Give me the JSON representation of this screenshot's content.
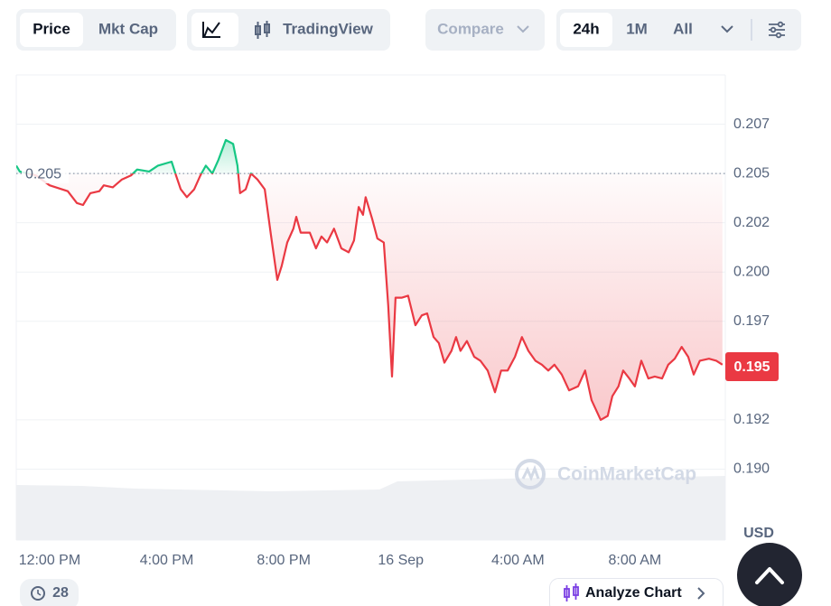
{
  "toolbar": {
    "price": "Price",
    "mkt_cap": "Mkt Cap",
    "trading_view": "TradingView",
    "compare": "Compare",
    "ranges": [
      "24h",
      "1M",
      "All"
    ]
  },
  "watermark": "CoinMarketCap",
  "footer": {
    "history_count": 28,
    "analyze": "Analyze Chart"
  },
  "chart_data": {
    "type": "line",
    "currency": "USD",
    "colors": {
      "up": "#16c784",
      "down": "#ea3943"
    },
    "reference": 0.205,
    "current_price": 0.1952,
    "current_price_label": "0.195",
    "x": [
      -1.14,
      -1.02,
      -0.46,
      0,
      0.62,
      0.93,
      1.14,
      1.39,
      1.7,
      1.85,
      2.16,
      2.47,
      2.78,
      2.99,
      3.4,
      3.7,
      4.17,
      4.32,
      4.48,
      4.69,
      4.94,
      5.15,
      5.34,
      5.56,
      5.77,
      6.02,
      6.27,
      6.42,
      6.51,
      6.7,
      6.88,
      7.1,
      7.35,
      7.56,
      7.78,
      7.93,
      8.12,
      8.33,
      8.43,
      8.58,
      8.89,
      9.1,
      9.29,
      9.48,
      9.72,
      9.97,
      10.22,
      10.4,
      10.56,
      10.71,
      10.8,
      11.02,
      11.2,
      11.42,
      11.57,
      11.7,
      11.82,
      12.04,
      12.25,
      12.5,
      12.72,
      12.9,
      13.12,
      13.3,
      13.49,
      13.73,
      13.89,
      14.04,
      14.26,
      14.51,
      14.72,
      14.97,
      15.22,
      15.43,
      15.65,
      15.9,
      16.14,
      16.36,
      16.6,
      16.82,
      17.04,
      17.25,
      17.5,
      17.75,
      18.06,
      18.3,
      18.52,
      18.83,
      19.07,
      19.23,
      19.44,
      19.6,
      19.81,
      20,
      20.22,
      20.46,
      20.68,
      20.93,
      21.14,
      21.36,
      21.6,
      21.82,
      22.01,
      22.22,
      22.53,
      22.78,
      22.99
    ],
    "values": [
      0.2054,
      0.2051,
      0.2049,
      0.2044,
      0.2041,
      0.2035,
      0.2034,
      0.204,
      0.2041,
      0.2044,
      0.2043,
      0.2047,
      0.2049,
      0.2052,
      0.2051,
      0.2054,
      0.2056,
      0.2049,
      0.2042,
      0.2038,
      0.2042,
      0.2049,
      0.2054,
      0.205,
      0.2057,
      0.2067,
      0.2065,
      0.2054,
      0.204,
      0.2042,
      0.205,
      0.2047,
      0.2042,
      0.2019,
      0.1996,
      0.2003,
      0.2015,
      0.2022,
      0.2028,
      0.202,
      0.202,
      0.2012,
      0.2018,
      0.2015,
      0.2022,
      0.2012,
      0.201,
      0.2016,
      0.2033,
      0.2029,
      0.2038,
      0.2027,
      0.2017,
      0.2015,
      0.1983,
      0.1947,
      0.1987,
      0.1987,
      0.1988,
      0.1973,
      0.1978,
      0.1979,
      0.1967,
      0.1964,
      0.1954,
      0.196,
      0.1967,
      0.196,
      0.1965,
      0.1957,
      0.1955,
      0.195,
      0.1939,
      0.195,
      0.195,
      0.1957,
      0.1967,
      0.196,
      0.1955,
      0.1953,
      0.195,
      0.1953,
      0.1948,
      0.194,
      0.1942,
      0.195,
      0.1935,
      0.1925,
      0.1927,
      0.1937,
      0.1942,
      0.195,
      0.1946,
      0.1942,
      0.1955,
      0.1946,
      0.1947,
      0.1946,
      0.1953,
      0.1956,
      0.1962,
      0.1957,
      0.1948,
      0.1955,
      0.1956,
      0.1955,
      0.1953
    ],
    "xlim": [
      -1.14,
      23.09
    ],
    "xticks": [
      {
        "value": 0,
        "label": "12:00 PM"
      },
      {
        "value": 4,
        "label": "4:00 PM"
      },
      {
        "value": 8,
        "label": "8:00 PM"
      },
      {
        "value": 12,
        "label": "16 Sep"
      },
      {
        "value": 16,
        "label": "4:00 AM"
      },
      {
        "value": 20,
        "label": "8:00 AM"
      }
    ],
    "ylim": [
      0.1864,
      0.21
    ],
    "yticks": [
      {
        "value": 0.2075,
        "label": "0.207"
      },
      0.205,
      {
        "value": 0.2025,
        "label": "0.202"
      },
      {
        "value": 0.2,
        "label": "0.200"
      },
      {
        "value": 0.1975,
        "label": "0.197"
      },
      {
        "value": 0.1925,
        "label": "0.192"
      },
      {
        "value": 0.19,
        "label": "0.190"
      }
    ],
    "grid": true
  }
}
